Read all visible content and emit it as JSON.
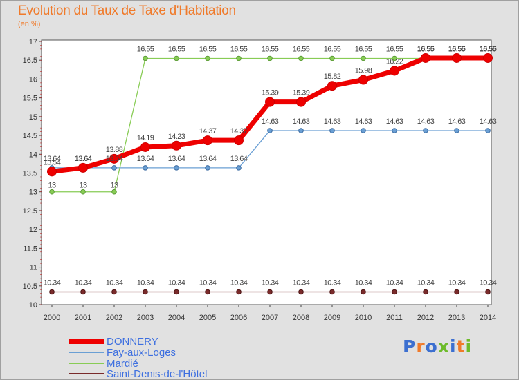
{
  "title": "Evolution du Taux de Taxe d'Habitation",
  "unit_label": "(en %)",
  "brand": "Proxiti",
  "chart_data": {
    "type": "line",
    "x": [
      "2000",
      "2001",
      "2002",
      "2003",
      "2004",
      "2005",
      "2006",
      "2007",
      "2008",
      "2009",
      "2010",
      "2011",
      "2012",
      "2013",
      "2014"
    ],
    "ylim": [
      10,
      17
    ],
    "yticks": [
      "10",
      "10.5",
      "11",
      "11.5",
      "12",
      "12.5",
      "13",
      "13.5",
      "14",
      "14.5",
      "15",
      "15.5",
      "16",
      "16.5",
      "17"
    ],
    "grid": false,
    "legend_position": "bottom-left",
    "series": [
      {
        "name": "DONNERY",
        "color": "#ee0000",
        "values": [
          13.54,
          13.64,
          13.88,
          14.19,
          14.23,
          14.37,
          14.37,
          15.39,
          15.39,
          15.82,
          15.98,
          16.22,
          16.56,
          16.56,
          16.56
        ],
        "labels": [
          "13.54",
          "13.64",
          "13.88",
          "14.19",
          "14.23",
          "14.37",
          "14.37",
          "15.39",
          "15.39",
          "15.82",
          "15.98",
          "16.22",
          "16.56",
          "16.56",
          "16.56"
        ]
      },
      {
        "name": "Fay-aux-Loges",
        "color": "#6a9fd4",
        "values": [
          13.64,
          13.64,
          13.64,
          13.64,
          13.64,
          13.64,
          13.64,
          14.63,
          14.63,
          14.63,
          14.63,
          14.63,
          14.63,
          14.63,
          14.63
        ],
        "labels": [
          "13.64",
          "13.64",
          "13.64",
          "13.64",
          "13.64",
          "13.64",
          "13.64",
          "14.63",
          "14.63",
          "14.63",
          "14.63",
          "14.63",
          "14.63",
          "14.63",
          "14.63"
        ]
      },
      {
        "name": "Mardié",
        "color": "#88cc55",
        "values": [
          13,
          13,
          13,
          16.55,
          16.55,
          16.55,
          16.55,
          16.55,
          16.55,
          16.55,
          16.55,
          16.55,
          16.55,
          16.55,
          16.55
        ],
        "labels": [
          "13",
          "13",
          "13",
          "16.55",
          "16.55",
          "16.55",
          "16.55",
          "16.55",
          "16.55",
          "16.55",
          "16.55",
          "16.55",
          "16.55",
          "16.55",
          "16.55"
        ]
      },
      {
        "name": "Saint-Denis-de-l'Hôtel",
        "color": "#7a2b2b",
        "values": [
          10.34,
          10.34,
          10.34,
          10.34,
          10.34,
          10.34,
          10.34,
          10.34,
          10.34,
          10.34,
          10.34,
          10.34,
          10.34,
          10.34,
          10.34
        ],
        "labels": [
          "10.34",
          "10.34",
          "10.34",
          "10.34",
          "10.34",
          "10.34",
          "10.34",
          "10.34",
          "10.34",
          "10.34",
          "10.34",
          "10.34",
          "10.34",
          "10.34",
          "10.34"
        ]
      }
    ]
  }
}
